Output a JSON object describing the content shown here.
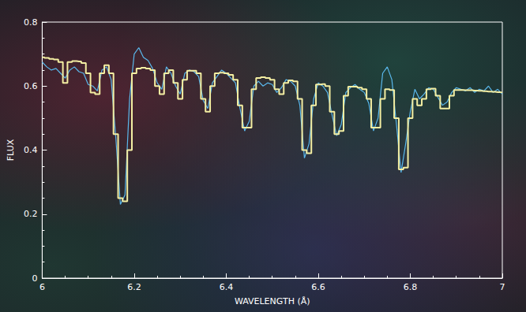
{
  "chart_data": {
    "type": "line",
    "x_label": "WAVELENGTH (Å)",
    "y_label": "FLUX",
    "x": [
      6.0,
      6.01,
      6.02,
      6.03,
      6.04,
      6.05,
      6.06,
      6.07,
      6.08,
      6.09,
      6.1,
      6.11,
      6.12,
      6.13,
      6.14,
      6.15,
      6.16,
      6.17,
      6.18,
      6.19,
      6.2,
      6.21,
      6.22,
      6.23,
      6.24,
      6.25,
      6.26,
      6.27,
      6.28,
      6.29,
      6.3,
      6.31,
      6.32,
      6.33,
      6.34,
      6.35,
      6.36,
      6.37,
      6.38,
      6.39,
      6.4,
      6.41,
      6.42,
      6.43,
      6.44,
      6.45,
      6.46,
      6.47,
      6.48,
      6.49,
      6.5,
      6.51,
      6.52,
      6.53,
      6.54,
      6.55,
      6.56,
      6.57,
      6.58,
      6.59,
      6.6,
      6.61,
      6.62,
      6.63,
      6.64,
      6.65,
      6.66,
      6.67,
      6.68,
      6.69,
      6.7,
      6.71,
      6.72,
      6.73,
      6.74,
      6.75,
      6.76,
      6.77,
      6.78,
      6.79,
      6.8,
      6.81,
      6.82,
      6.83,
      6.84,
      6.85,
      6.86,
      6.87,
      6.88,
      6.89,
      6.9,
      6.91,
      6.92,
      6.93,
      6.94,
      6.95,
      6.96,
      6.97,
      6.98,
      6.99,
      7.0
    ],
    "series": [
      {
        "color": "#5ab8ec",
        "line_style": "solid",
        "values": [
          0.675,
          0.66,
          0.65,
          0.655,
          0.64,
          0.625,
          0.65,
          0.66,
          0.645,
          0.64,
          0.605,
          0.6,
          0.585,
          0.65,
          0.66,
          0.62,
          0.44,
          0.23,
          0.26,
          0.56,
          0.7,
          0.72,
          0.69,
          0.68,
          0.655,
          0.61,
          0.59,
          0.66,
          0.64,
          0.6,
          0.575,
          0.64,
          0.65,
          0.645,
          0.63,
          0.555,
          0.53,
          0.61,
          0.63,
          0.65,
          0.64,
          0.625,
          0.61,
          0.53,
          0.46,
          0.49,
          0.6,
          0.615,
          0.6,
          0.61,
          0.605,
          0.58,
          0.595,
          0.62,
          0.615,
          0.6,
          0.54,
          0.375,
          0.42,
          0.56,
          0.61,
          0.6,
          0.58,
          0.51,
          0.445,
          0.48,
          0.58,
          0.595,
          0.605,
          0.59,
          0.58,
          0.545,
          0.46,
          0.5,
          0.64,
          0.66,
          0.62,
          0.48,
          0.33,
          0.42,
          0.52,
          0.59,
          0.56,
          0.575,
          0.595,
          0.59,
          0.565,
          0.54,
          0.55,
          0.58,
          0.595,
          0.59,
          0.585,
          0.595,
          0.58,
          0.59,
          0.585,
          0.6,
          0.58,
          0.59,
          0.575
        ]
      },
      {
        "color": "#f3eea2",
        "line_style": "step",
        "values": [
          0.69,
          0.688,
          0.685,
          0.683,
          0.675,
          0.61,
          0.675,
          0.678,
          0.677,
          0.672,
          0.64,
          0.58,
          0.575,
          0.64,
          0.665,
          0.64,
          0.45,
          0.25,
          0.24,
          0.4,
          0.64,
          0.655,
          0.657,
          0.655,
          0.65,
          0.6,
          0.575,
          0.64,
          0.65,
          0.61,
          0.56,
          0.62,
          0.648,
          0.648,
          0.64,
          0.56,
          0.52,
          0.6,
          0.64,
          0.642,
          0.64,
          0.635,
          0.62,
          0.54,
          0.47,
          0.47,
          0.59,
          0.625,
          0.628,
          0.625,
          0.62,
          0.59,
          0.575,
          0.61,
          0.618,
          0.615,
          0.56,
          0.4,
          0.39,
          0.54,
          0.605,
          0.606,
          0.6,
          0.52,
          0.45,
          0.46,
          0.57,
          0.598,
          0.598,
          0.595,
          0.59,
          0.56,
          0.47,
          0.47,
          0.56,
          0.59,
          0.588,
          0.5,
          0.34,
          0.345,
          0.5,
          0.56,
          0.54,
          0.56,
          0.59,
          0.592,
          0.57,
          0.53,
          0.53,
          0.57,
          0.588,
          0.588,
          0.587,
          0.587,
          0.586,
          0.585,
          0.584,
          0.583,
          0.582,
          0.581,
          0.58
        ]
      }
    ],
    "xlim": [
      6,
      7
    ],
    "xticks": [
      6,
      6.2,
      6.4,
      6.6,
      6.8,
      7
    ],
    "ylim": [
      0,
      0.8
    ],
    "yticks": [
      0,
      0.2,
      0.4,
      0.6,
      0.8
    ],
    "grid": false
  }
}
